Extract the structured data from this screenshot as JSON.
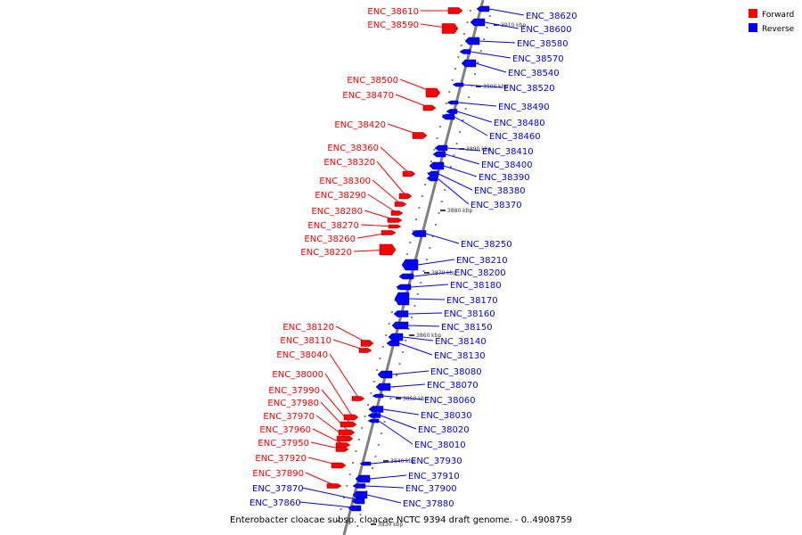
{
  "caption": "Enterobacter cloacae subsp. cloacae NCTC 9394 draft genome. - 0..4908759",
  "colors": {
    "forward": "#ff0000",
    "reverse": "#0000ff",
    "axis": "#808080",
    "tick": "#000000"
  },
  "legend": [
    {
      "label": "Forward",
      "color": "#ff0000"
    },
    {
      "label": "Reverse",
      "color": "#0000ff"
    }
  ],
  "kbp_marks": [
    "3910 kbp",
    "3900 kbp",
    "3890 kbp",
    "3880 kbp",
    "3870 kbp",
    "3860 kbp",
    "3850 kbp",
    "3840 kbp",
    "3830 kbp"
  ],
  "forward_genes": [
    "ENC_38610",
    "ENC_38590",
    "ENC_38500",
    "ENC_38470",
    "ENC_38420",
    "ENC_38360",
    "ENC_38320",
    "ENC_38300",
    "ENC_38290",
    "ENC_38280",
    "ENC_38270",
    "ENC_38260",
    "ENC_38220",
    "ENC_38120",
    "ENC_38110",
    "ENC_38040",
    "ENC_38000",
    "ENC_37990",
    "ENC_37980",
    "ENC_37970",
    "ENC_37960",
    "ENC_37950",
    "ENC_37920",
    "ENC_37890"
  ],
  "reverse_genes": [
    "ENC_38620",
    "ENC_38600",
    "ENC_38580",
    "ENC_38570",
    "ENC_38540",
    "ENC_38520",
    "ENC_38490",
    "ENC_38480",
    "ENC_38460",
    "ENC_38410",
    "ENC_38400",
    "ENC_38390",
    "ENC_38380",
    "ENC_38370",
    "ENC_38250",
    "ENC_38210",
    "ENC_38200",
    "ENC_38180",
    "ENC_38170",
    "ENC_38160",
    "ENC_38150",
    "ENC_38140",
    "ENC_38130",
    "ENC_38080",
    "ENC_38070",
    "ENC_38060",
    "ENC_38030",
    "ENC_38020",
    "ENC_38010",
    "ENC_37930",
    "ENC_37910",
    "ENC_37900",
    "ENC_37880",
    "ENC_37870",
    "ENC_37860"
  ]
}
